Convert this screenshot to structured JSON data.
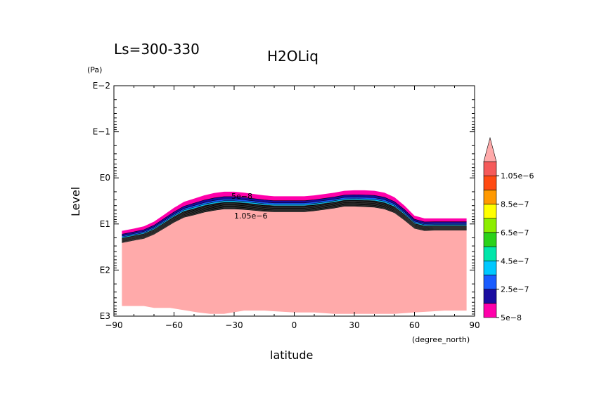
{
  "chart_data": {
    "type": "heatmap",
    "title": "H2OLiq",
    "subtitle": "Ls=300-330",
    "xlabel": "latitude",
    "xunits": "(degree_north)",
    "ylabel": "Level",
    "yunits": "(Pa)",
    "xlim": [
      -90,
      90
    ],
    "xticks": [
      -90,
      -60,
      -30,
      0,
      30,
      60,
      90
    ],
    "xtick_labels": [
      "−90",
      "−60",
      "−30",
      "0",
      "30",
      "60",
      "90"
    ],
    "ylim_log10": [
      -2,
      3
    ],
    "yticks_log10": [
      -2,
      -1,
      0,
      1,
      2,
      3
    ],
    "ytick_labels": [
      "E−2",
      "E−1",
      "E0",
      "E1",
      "E2",
      "E3"
    ],
    "surface": {
      "lat": [
        -86,
        -80,
        -75,
        -70,
        -65,
        -60,
        -55,
        -50,
        -45,
        -40,
        -35,
        -30,
        -25,
        -20,
        -15,
        -10,
        -5,
        0,
        5,
        10,
        15,
        20,
        25,
        30,
        35,
        40,
        45,
        50,
        55,
        60,
        65,
        70,
        75,
        80,
        86
      ],
      "log10_p_top": [
        1.15,
        1.1,
        1.05,
        0.95,
        0.8,
        0.65,
        0.52,
        0.45,
        0.38,
        0.33,
        0.3,
        0.3,
        0.32,
        0.35,
        0.38,
        0.4,
        0.4,
        0.4,
        0.4,
        0.38,
        0.35,
        0.32,
        0.28,
        0.27,
        0.27,
        0.28,
        0.32,
        0.42,
        0.6,
        0.82,
        0.88,
        0.88,
        0.88,
        0.88,
        0.88
      ],
      "cloud_thickness_log10": [
        0.26,
        0.26,
        0.27,
        0.28,
        0.3,
        0.32,
        0.34,
        0.36,
        0.37,
        0.38,
        0.38,
        0.38,
        0.37,
        0.36,
        0.35,
        0.34,
        0.34,
        0.34,
        0.34,
        0.34,
        0.34,
        0.34,
        0.34,
        0.35,
        0.36,
        0.36,
        0.36,
        0.34,
        0.32,
        0.28,
        0.27,
        0.26,
        0.26,
        0.26,
        0.26
      ],
      "bottom_lat": [
        -86,
        -75,
        -70,
        -62,
        -55,
        -48,
        -42,
        -35,
        -25,
        -15,
        -8,
        0,
        10,
        20,
        30,
        40,
        50,
        60,
        68,
        75,
        86
      ],
      "bottom_log10": [
        2.78,
        2.78,
        2.82,
        2.82,
        2.87,
        2.92,
        2.95,
        2.95,
        2.88,
        2.88,
        2.9,
        2.92,
        2.92,
        2.95,
        2.95,
        2.95,
        2.95,
        2.92,
        2.9,
        2.88,
        2.88
      ]
    },
    "colorbar": {
      "levels": [
        5e-08,
        1.5e-07,
        2.5e-07,
        3.5e-07,
        4.5e-07,
        5.5e-07,
        6.5e-07,
        7.5e-07,
        8.5e-07,
        9.5e-07,
        1.05e-06
      ],
      "labels": [
        "5e−8",
        "2.5e−7",
        "4.5e−7",
        "6.5e−7",
        "8.5e−7",
        "1.05e−6"
      ],
      "label_levels": [
        5e-08,
        2.5e-07,
        4.5e-07,
        6.5e-07,
        8.5e-07,
        1.05e-06
      ],
      "colors": [
        "#ff00aa",
        "#1a0ca0",
        "#1a5cff",
        "#00c8ff",
        "#00e6aa",
        "#2ad21a",
        "#8cee00",
        "#ffff00",
        "#ff9900",
        "#ff4a12",
        "#f55a5a"
      ],
      "extend_color": "#ffaaaa",
      "ground_color": "#ffaaaa"
    },
    "contour_labels": [
      "5e−8",
      "1.05e−6"
    ],
    "grid": false
  }
}
